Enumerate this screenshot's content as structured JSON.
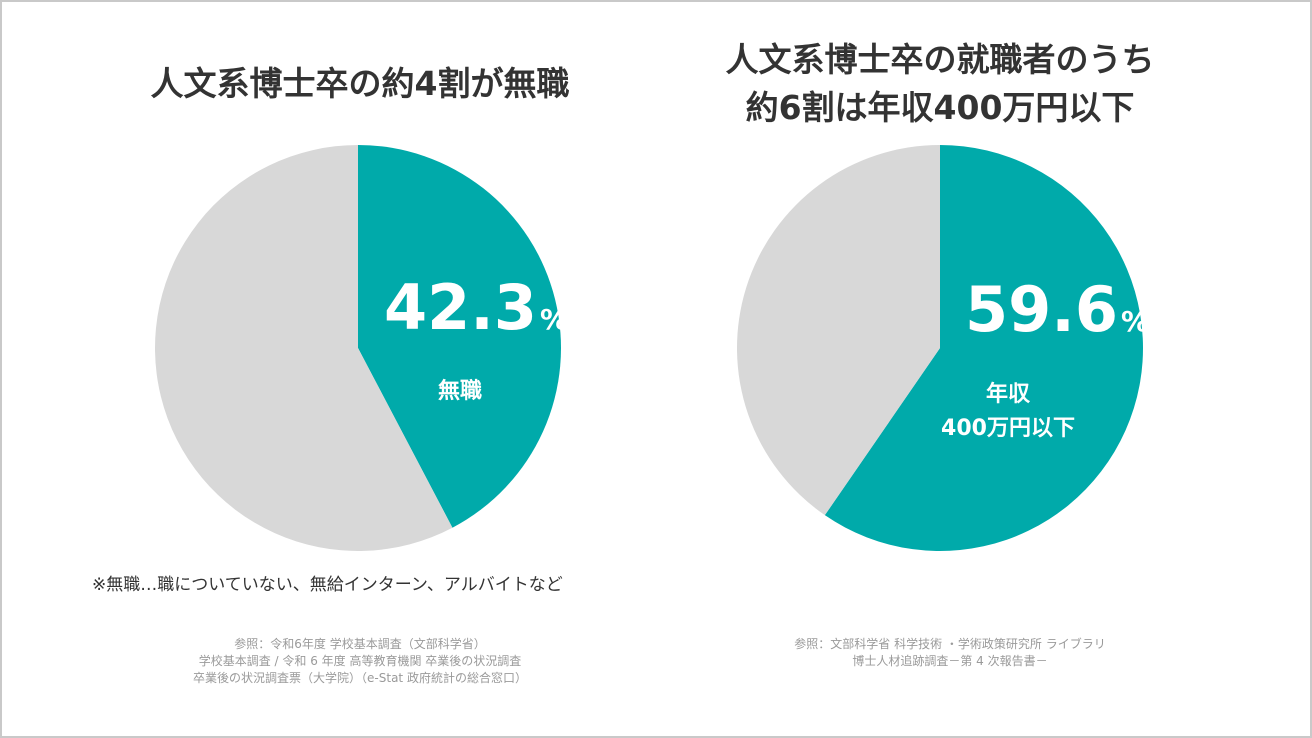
{
  "colors": {
    "highlight": "#00aaaa",
    "rest": "#d8d8d8"
  },
  "chart_data": [
    {
      "type": "pie",
      "title": "人文系博士卒の約4割が無職",
      "slices": [
        {
          "label": "無職",
          "value": 42.3,
          "color": "#00aaaa"
        },
        {
          "label": "",
          "value": 57.7,
          "color": "#d8d8d8"
        }
      ],
      "value_text": "42.3",
      "unit": "%",
      "slice_label_lines": [
        "無職"
      ],
      "note": "※無職…職についていない、無給インターン、アルバイトなど",
      "source_lines": [
        "参照：令和6年度 学校基本調査（文部科学省）",
        "学校基本調査 / 令和 6 年度 高等教育機関 卒業後の状況調査",
        "卒業後の状況調査票（大学院）（e-Stat 政府統計の総合窓口）"
      ]
    },
    {
      "type": "pie",
      "title_lines": [
        "人文系博士卒の就職者のうち",
        "約6割は年収400万円以下"
      ],
      "slices": [
        {
          "label": "年収400万円以下",
          "value": 59.6,
          "color": "#00aaaa"
        },
        {
          "label": "",
          "value": 40.4,
          "color": "#d8d8d8"
        }
      ],
      "value_text": "59.6",
      "unit": "%",
      "slice_label_lines": [
        "年収",
        "400万円以下"
      ],
      "source_lines": [
        "参照：文部科学省 科学技術 ・学術政策研究所 ライブラリ",
        "博士人材追跡調査－第 4 次報告書－"
      ]
    }
  ]
}
